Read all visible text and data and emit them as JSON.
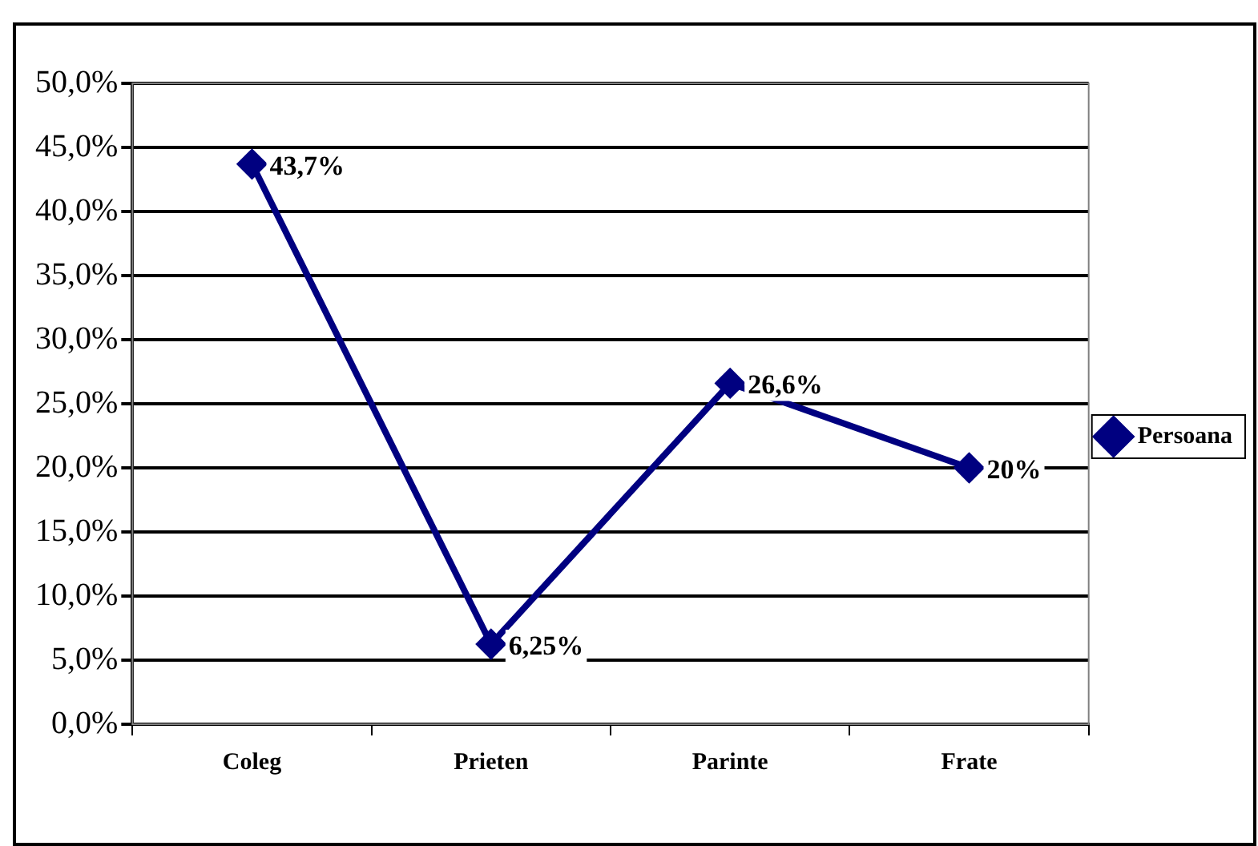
{
  "chart_data": {
    "type": "line",
    "categories": [
      "Coleg",
      "Prieten",
      "Parinte",
      "Frate"
    ],
    "series": [
      {
        "name": "Persoana",
        "color": "#000080",
        "values": [
          43.7,
          6.25,
          26.6,
          20
        ],
        "value_labels": [
          "43,7%",
          "6,25%",
          "26,6%",
          "20%"
        ]
      }
    ],
    "ylim": [
      0,
      50
    ],
    "yticks": [
      {
        "value": 0,
        "label": "0,0%"
      },
      {
        "value": 5,
        "label": "5,0%"
      },
      {
        "value": 10,
        "label": "10,0%"
      },
      {
        "value": 15,
        "label": "15,0%"
      },
      {
        "value": 20,
        "label": "20,0%"
      },
      {
        "value": 25,
        "label": "25,0%"
      },
      {
        "value": 30,
        "label": "30,0%"
      },
      {
        "value": 35,
        "label": "35,0%"
      },
      {
        "value": 40,
        "label": "40,0%"
      },
      {
        "value": 45,
        "label": "45,0%"
      },
      {
        "value": 50,
        "label": "50,0%"
      }
    ],
    "grid": "y",
    "legend": "right",
    "marker": "diamond",
    "line_style": "solid"
  }
}
